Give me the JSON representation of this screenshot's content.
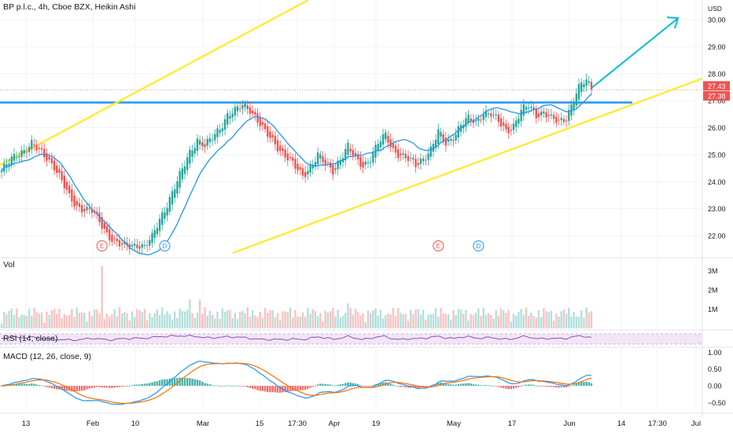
{
  "header": {
    "title": "BP p.l.c., 4h, Cboe BZX, Heikin Ashi",
    "currency": "USD"
  },
  "colors": {
    "up": "#26a69a",
    "down": "#ef5350",
    "ma": "#2196f3",
    "trend": "#ffeb3b",
    "resistance": "#2196f3",
    "target": "#00bcd4",
    "macd": "#2196f3",
    "signal": "#ff6d00",
    "rsi": "#7e57c2",
    "rsi_band": "#f3e5f5",
    "price_tag_red": "#ef5350",
    "grid": "#f0f3fa"
  },
  "chart_data": [
    {
      "type": "candlestick",
      "name": "price",
      "ylim": [
        21.4,
        30.6
      ],
      "y_ticks": [
        "22.00",
        "23.00",
        "24.00",
        "25.00",
        "26.00",
        "27.00",
        "28.00",
        "29.00",
        "30.00"
      ],
      "ohlc_close_path": [
        [
          0,
          24.4
        ],
        [
          3,
          24.7
        ],
        [
          6,
          25.0
        ],
        [
          9,
          25.2
        ],
        [
          12,
          25.4
        ],
        [
          15,
          25.1
        ],
        [
          18,
          24.9
        ],
        [
          21,
          24.6
        ],
        [
          24,
          24.0
        ],
        [
          27,
          23.4
        ],
        [
          30,
          23.1
        ],
        [
          33,
          23.0
        ],
        [
          36,
          22.9
        ],
        [
          39,
          22.5
        ],
        [
          42,
          22.1
        ],
        [
          45,
          21.8
        ],
        [
          48,
          21.6
        ],
        [
          51,
          21.6
        ],
        [
          54,
          21.7
        ],
        [
          57,
          21.6
        ],
        [
          60,
          21.9
        ],
        [
          63,
          22.6
        ],
        [
          66,
          23.2
        ],
        [
          69,
          23.8
        ],
        [
          72,
          24.4
        ],
        [
          75,
          25.1
        ],
        [
          78,
          25.6
        ],
        [
          81,
          25.3
        ],
        [
          84,
          25.6
        ],
        [
          87,
          26.0
        ],
        [
          90,
          26.5
        ],
        [
          93,
          26.6
        ],
        [
          96,
          26.8
        ],
        [
          99,
          26.7
        ],
        [
          102,
          26.3
        ],
        [
          105,
          25.8
        ],
        [
          108,
          25.5
        ],
        [
          111,
          25.2
        ],
        [
          114,
          24.9
        ],
        [
          117,
          24.5
        ],
        [
          120,
          24.2
        ],
        [
          123,
          24.6
        ],
        [
          126,
          25.0
        ],
        [
          129,
          24.6
        ],
        [
          132,
          24.4
        ],
        [
          135,
          24.9
        ],
        [
          138,
          25.3
        ],
        [
          141,
          24.8
        ],
        [
          144,
          24.6
        ],
        [
          147,
          24.9
        ],
        [
          150,
          25.4
        ],
        [
          153,
          25.7
        ],
        [
          156,
          25.2
        ],
        [
          159,
          25.0
        ],
        [
          162,
          24.8
        ],
        [
          165,
          24.6
        ],
        [
          168,
          24.9
        ],
        [
          171,
          25.2
        ],
        [
          174,
          25.8
        ],
        [
          177,
          25.4
        ],
        [
          180,
          25.7
        ],
        [
          183,
          26.1
        ],
        [
          186,
          26.3
        ],
        [
          189,
          26.2
        ],
        [
          192,
          26.6
        ],
        [
          195,
          26.5
        ],
        [
          198,
          26.2
        ],
        [
          201,
          25.9
        ],
        [
          204,
          26.1
        ],
        [
          207,
          26.6
        ],
        [
          210,
          26.8
        ],
        [
          213,
          26.5
        ],
        [
          216,
          26.6
        ],
        [
          219,
          26.3
        ],
        [
          222,
          26.2
        ],
        [
          225,
          26.4
        ],
        [
          228,
          27.1
        ],
        [
          231,
          27.6
        ],
        [
          233,
          27.7
        ],
        [
          235,
          27.5
        ]
      ],
      "x_ticks": [
        "13",
        "Feb",
        "10",
        "Mar",
        "15",
        "17:30",
        "Apr",
        "19",
        "May",
        "17",
        "Jun",
        "14",
        "17:30",
        "Jul"
      ],
      "ma_label": "MA",
      "price_labels": [
        "27.43",
        "27.38"
      ],
      "events": [
        {
          "label": "E",
          "at": 40
        },
        {
          "label": "D",
          "at": 65
        },
        {
          "label": "E",
          "at": 174
        },
        {
          "label": "D",
          "at": 190
        }
      ]
    },
    {
      "type": "bar",
      "name": "Vol",
      "y_ticks": [
        "1M",
        "2M",
        "3M"
      ],
      "ylim": [
        0,
        3.6
      ]
    },
    {
      "type": "line",
      "name": "RSI (14, close)",
      "ylim": [
        0,
        100
      ]
    },
    {
      "type": "line",
      "name": "MACD (12, 26, close, 9)",
      "y_ticks": [
        "1.00",
        "0.50",
        "0.00",
        "−0.50"
      ],
      "ylim": [
        -0.72,
        1.1
      ]
    }
  ]
}
